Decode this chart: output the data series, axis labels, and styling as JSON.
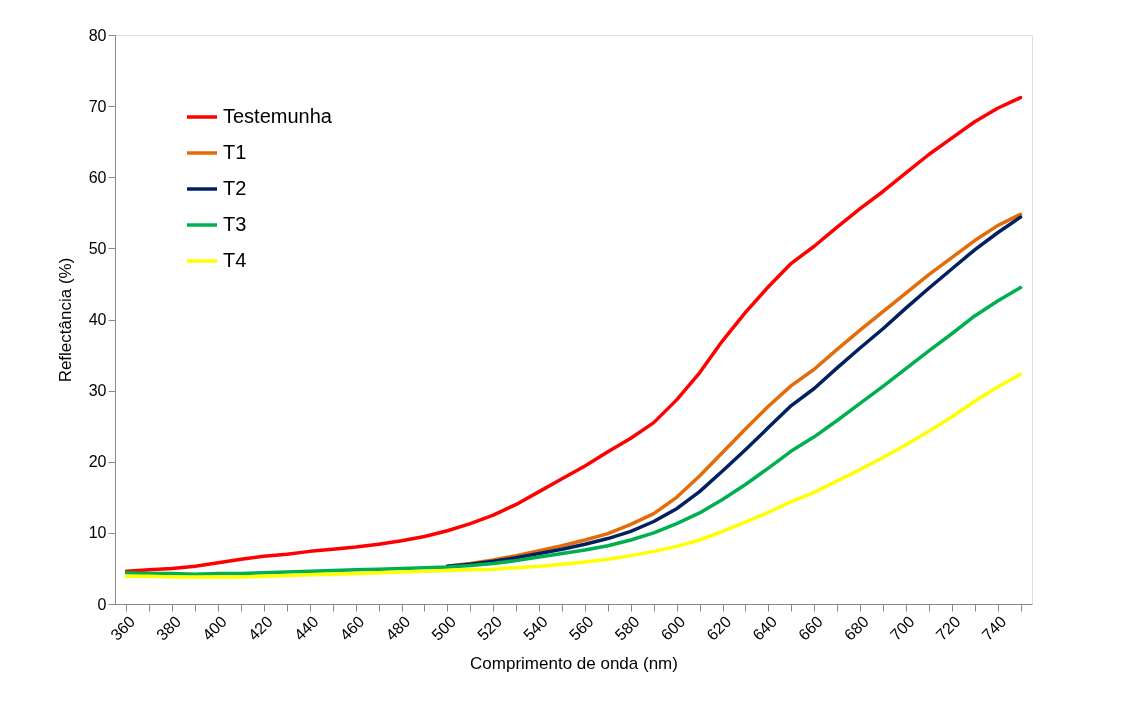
{
  "chart_data": {
    "type": "line",
    "xlabel": "Comprimento de onda (nm)",
    "ylabel": "Reflectância (%)",
    "x": [
      360,
      370,
      380,
      390,
      400,
      410,
      420,
      430,
      440,
      450,
      460,
      470,
      480,
      490,
      500,
      510,
      520,
      530,
      540,
      550,
      560,
      570,
      580,
      590,
      600,
      610,
      620,
      630,
      640,
      650,
      660,
      670,
      680,
      690,
      700,
      710,
      720,
      730,
      740,
      750
    ],
    "xlim": [
      355,
      755
    ],
    "xticks": [
      360,
      {
        "value": 370,
        "label": null
      },
      380,
      {
        "value": 390,
        "label": null
      },
      400,
      {
        "value": 410,
        "label": null
      },
      420,
      {
        "value": 430,
        "label": null
      },
      440,
      {
        "value": 450,
        "label": null
      },
      460,
      {
        "value": 470,
        "label": null
      },
      480,
      {
        "value": 490,
        "label": null
      },
      500,
      {
        "value": 510,
        "label": null
      },
      520,
      {
        "value": 530,
        "label": null
      },
      540,
      {
        "value": 550,
        "label": null
      },
      560,
      {
        "value": 570,
        "label": null
      },
      580,
      {
        "value": 590,
        "label": null
      },
      600,
      {
        "value": 610,
        "label": null
      },
      620,
      {
        "value": 630,
        "label": null
      },
      640,
      {
        "value": 650,
        "label": null
      },
      660,
      {
        "value": 670,
        "label": null
      },
      680,
      {
        "value": 690,
        "label": null
      },
      700,
      {
        "value": 710,
        "label": null
      },
      720,
      {
        "value": 730,
        "label": null
      },
      740,
      {
        "value": 750,
        "label": null
      }
    ],
    "ylim": [
      0,
      80
    ],
    "yticks": [
      0,
      10,
      20,
      30,
      40,
      50,
      60,
      70,
      80
    ],
    "grid": false,
    "legend": "top left",
    "marker": "none",
    "line_style": "solid",
    "series": [
      {
        "name": "Testemunha",
        "color": "#ff0000",
        "values": [
          4.6,
          4.8,
          5.0,
          5.3,
          5.8,
          6.3,
          6.7,
          7.0,
          7.4,
          7.7,
          8.0,
          8.4,
          8.9,
          9.5,
          10.3,
          11.3,
          12.5,
          14.0,
          15.8,
          17.6,
          19.4,
          21.4,
          23.3,
          25.5,
          28.7,
          32.5,
          37.0,
          41.0,
          44.6,
          47.9,
          50.3,
          53.0,
          55.6,
          58.0,
          60.6,
          63.2,
          65.5,
          67.8,
          69.7,
          71.2
        ]
      },
      {
        "name": "T1",
        "color": "#e36c09",
        "values": [
          null,
          null,
          null,
          null,
          null,
          null,
          null,
          null,
          null,
          null,
          null,
          null,
          null,
          null,
          5.3,
          5.7,
          6.2,
          6.8,
          7.5,
          8.2,
          9.0,
          9.9,
          11.2,
          12.7,
          15.0,
          18.0,
          21.3,
          24.6,
          27.8,
          30.7,
          33.0,
          35.8,
          38.5,
          41.1,
          43.7,
          46.3,
          48.7,
          51.1,
          53.2,
          54.8
        ]
      },
      {
        "name": "T2",
        "color": "#002060",
        "values": [
          null,
          null,
          null,
          null,
          null,
          null,
          null,
          null,
          null,
          null,
          null,
          null,
          null,
          null,
          5.3,
          5.6,
          6.0,
          6.5,
          7.1,
          7.7,
          8.4,
          9.2,
          10.2,
          11.6,
          13.4,
          15.8,
          18.7,
          21.7,
          24.8,
          27.9,
          30.3,
          33.2,
          36.0,
          38.7,
          41.6,
          44.4,
          47.1,
          49.8,
          52.2,
          54.4
        ]
      },
      {
        "name": "T3",
        "color": "#00b050",
        "values": [
          4.4,
          4.3,
          4.3,
          4.2,
          4.3,
          4.3,
          4.4,
          4.5,
          4.6,
          4.7,
          4.8,
          4.9,
          5.0,
          5.1,
          5.2,
          5.4,
          5.7,
          6.1,
          6.6,
          7.1,
          7.6,
          8.2,
          9.0,
          10.0,
          11.3,
          12.8,
          14.7,
          16.8,
          19.1,
          21.5,
          23.5,
          25.8,
          28.2,
          30.6,
          33.1,
          35.6,
          38.0,
          40.5,
          42.6,
          44.5
        ]
      },
      {
        "name": "T4",
        "color": "#ffff00",
        "values": [
          3.9,
          3.9,
          3.8,
          3.8,
          3.8,
          3.8,
          3.9,
          4.0,
          4.1,
          4.2,
          4.3,
          4.4,
          4.5,
          4.6,
          4.7,
          4.8,
          4.9,
          5.1,
          5.3,
          5.6,
          5.9,
          6.3,
          6.8,
          7.4,
          8.1,
          9.0,
          10.2,
          11.5,
          12.9,
          14.4,
          15.7,
          17.3,
          18.9,
          20.6,
          22.4,
          24.3,
          26.3,
          28.5,
          30.5,
          32.3
        ]
      }
    ]
  }
}
